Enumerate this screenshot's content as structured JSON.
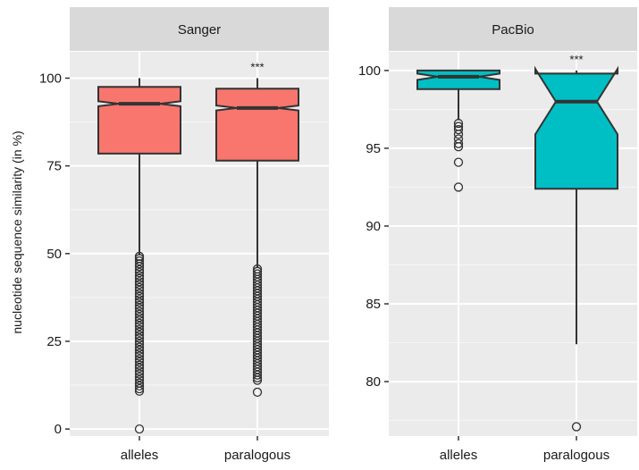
{
  "chart_data": {
    "type": "box",
    "ylabel": "nucleotide sequence similarity (in %)",
    "categories": [
      "alleles",
      "paralogous"
    ],
    "grid": true,
    "panels": [
      {
        "name": "Sanger",
        "fill": "#F8766D",
        "ylim": [
          -2,
          107.5
        ],
        "yticks": [
          0,
          25,
          50,
          75,
          100
        ],
        "ytick_labels": [
          "0",
          "25",
          "50",
          "75",
          "100"
        ],
        "boxes": [
          {
            "category": "alleles",
            "min": 49.5,
            "q1": 78.5,
            "median": 92.7,
            "q3": 97.5,
            "max": 100,
            "notch_low": 92.0,
            "notch_high": 93.4,
            "outliers": [
              49.2,
              48.6,
              47.9,
              47.1,
              46.3,
              45.4,
              44.6,
              43.7,
              42.9,
              42.0,
              41.2,
              40.3,
              39.5,
              38.6,
              37.8,
              36.9,
              36.1,
              35.2,
              34.4,
              33.5,
              32.7,
              31.8,
              31.0,
              30.1,
              29.3,
              28.4,
              27.6,
              26.7,
              25.9,
              25.0,
              24.2,
              23.3,
              22.5,
              21.6,
              20.8,
              19.9,
              19.1,
              18.2,
              17.4,
              16.5,
              15.7,
              14.8,
              14.0,
              13.1,
              12.3,
              11.5,
              10.8,
              0.0
            ],
            "annotation": ""
          },
          {
            "category": "paralogous",
            "min": 46,
            "q1": 76.5,
            "median": 91.5,
            "q3": 97.0,
            "max": 100,
            "notch_low": 90.8,
            "notch_high": 92.2,
            "outliers": [
              45.6,
              44.9,
              44.2,
              43.4,
              42.6,
              41.8,
              41.0,
              40.2,
              39.4,
              38.6,
              37.8,
              37.0,
              36.2,
              35.4,
              34.6,
              33.8,
              33.0,
              32.2,
              31.4,
              30.6,
              29.8,
              29.0,
              28.2,
              27.4,
              26.6,
              25.8,
              25.0,
              24.2,
              23.4,
              22.6,
              21.8,
              21.0,
              20.2,
              19.4,
              18.6,
              17.8,
              17.0,
              16.2,
              15.4,
              14.6,
              13.9,
              10.5
            ],
            "annotation": "***"
          }
        ]
      },
      {
        "name": "PacBio",
        "fill": "#00BFC4",
        "ylim": [
          76.5,
          101.2
        ],
        "yticks": [
          80,
          85,
          90,
          95,
          100
        ],
        "ytick_labels": [
          "80",
          "85",
          "90",
          "95",
          "100"
        ],
        "boxes": [
          {
            "category": "alleles",
            "min": 96.8,
            "q1": 98.8,
            "median": 99.6,
            "q3": 100,
            "max": 100,
            "notch_low": 99.4,
            "notch_high": 99.8,
            "outliers": [
              96.6,
              96.4,
              96.2,
              95.9,
              95.6,
              95.3,
              95.1,
              94.1,
              92.5
            ],
            "annotation": ""
          },
          {
            "category": "paralogous",
            "min": 82.4,
            "q1": 92.4,
            "median": 98.0,
            "q3": 99.8,
            "max": 100,
            "notch_low": 95.9,
            "notch_high": 100.1,
            "outliers": [
              77.1
            ],
            "annotation": "***"
          }
        ]
      }
    ]
  }
}
